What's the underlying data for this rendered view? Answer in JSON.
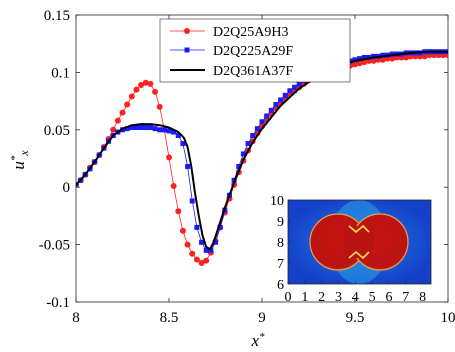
{
  "chart_data": {
    "type": "line",
    "xlabel": "x*",
    "ylabel": "u*x",
    "xlim": [
      8,
      10
    ],
    "ylim": [
      -0.1,
      0.15
    ],
    "xticks": [
      8,
      8.5,
      9,
      9.5,
      10
    ],
    "yticks": [
      -0.1,
      -0.05,
      0,
      0.05,
      0.1,
      0.15
    ],
    "xtick_labels": [
      "8",
      "8.5",
      "9",
      "9.5",
      "10"
    ],
    "ytick_labels": [
      "-0.1",
      "-0.05",
      "0",
      "0.05",
      "0.1",
      "0.15"
    ],
    "legend_position": "top-center",
    "series": [
      {
        "name": "D2Q25A9H3",
        "color": "#ff2020",
        "marker": "circle",
        "line_style": "solid-thin",
        "x": [
          8.0,
          8.025,
          8.05,
          8.075,
          8.1,
          8.125,
          8.15,
          8.175,
          8.2,
          8.225,
          8.25,
          8.275,
          8.3,
          8.325,
          8.35,
          8.375,
          8.4,
          8.425,
          8.45,
          8.475,
          8.5,
          8.525,
          8.55,
          8.575,
          8.6,
          8.625,
          8.65,
          8.675,
          8.7,
          8.725,
          8.75,
          8.775,
          8.8,
          8.825,
          8.85,
          8.875,
          8.9,
          8.925,
          8.95,
          8.975,
          9.0,
          9.025,
          9.05,
          9.075,
          9.1,
          9.125,
          9.15,
          9.175,
          9.2,
          9.225,
          9.25,
          9.275,
          9.3,
          9.325,
          9.35,
          9.375,
          9.4,
          9.425,
          9.45,
          9.475,
          9.5,
          9.525,
          9.55,
          9.575,
          9.6,
          9.625,
          9.65,
          9.675,
          9.7,
          9.725,
          9.75,
          9.775,
          9.8,
          9.825,
          9.85,
          9.875,
          9.9,
          9.925,
          9.95,
          9.975,
          10.0
        ],
        "y": [
          0.002,
          0.006,
          0.011,
          0.017,
          0.022,
          0.028,
          0.035,
          0.042,
          0.05,
          0.058,
          0.065,
          0.072,
          0.079,
          0.085,
          0.089,
          0.091,
          0.09,
          0.083,
          0.07,
          0.05,
          0.026,
          0.001,
          -0.021,
          -0.038,
          -0.05,
          -0.058,
          -0.063,
          -0.066,
          -0.064,
          -0.057,
          -0.047,
          -0.035,
          -0.022,
          -0.01,
          0.002,
          0.013,
          0.023,
          0.032,
          0.04,
          0.047,
          0.053,
          0.059,
          0.064,
          0.069,
          0.073,
          0.077,
          0.081,
          0.084,
          0.087,
          0.09,
          0.093,
          0.095,
          0.097,
          0.099,
          0.1,
          0.102,
          0.103,
          0.104,
          0.105,
          0.106,
          0.107,
          0.108,
          0.109,
          0.11,
          0.11,
          0.111,
          0.111,
          0.112,
          0.112,
          0.113,
          0.113,
          0.113,
          0.114,
          0.114,
          0.114,
          0.114,
          0.115,
          0.115,
          0.115,
          0.115,
          0.115
        ]
      },
      {
        "name": "D2Q225A29F",
        "color": "#1a1aff",
        "marker": "square",
        "line_style": "solid-thin",
        "x": [
          8.0,
          8.025,
          8.05,
          8.075,
          8.1,
          8.125,
          8.15,
          8.175,
          8.2,
          8.225,
          8.25,
          8.275,
          8.3,
          8.325,
          8.35,
          8.375,
          8.4,
          8.425,
          8.45,
          8.475,
          8.5,
          8.525,
          8.55,
          8.575,
          8.6,
          8.625,
          8.65,
          8.675,
          8.7,
          8.725,
          8.75,
          8.775,
          8.8,
          8.825,
          8.85,
          8.875,
          8.9,
          8.925,
          8.95,
          8.975,
          9.0,
          9.025,
          9.05,
          9.075,
          9.1,
          9.125,
          9.15,
          9.175,
          9.2,
          9.225,
          9.25,
          9.275,
          9.3,
          9.325,
          9.35,
          9.375,
          9.4,
          9.425,
          9.45,
          9.475,
          9.5,
          9.525,
          9.55,
          9.575,
          9.6,
          9.625,
          9.65,
          9.675,
          9.7,
          9.725,
          9.75,
          9.775,
          9.8,
          9.825,
          9.85,
          9.875,
          9.9,
          9.925,
          9.95,
          9.975,
          10.0
        ],
        "y": [
          0.002,
          0.006,
          0.011,
          0.016,
          0.022,
          0.028,
          0.034,
          0.04,
          0.045,
          0.048,
          0.05,
          0.051,
          0.052,
          0.052,
          0.052,
          0.052,
          0.052,
          0.051,
          0.05,
          0.05,
          0.049,
          0.048,
          0.045,
          0.038,
          0.018,
          -0.012,
          -0.035,
          -0.048,
          -0.055,
          -0.055,
          -0.048,
          -0.035,
          -0.02,
          -0.007,
          0.006,
          0.018,
          0.029,
          0.038,
          0.045,
          0.051,
          0.057,
          0.062,
          0.067,
          0.072,
          0.076,
          0.08,
          0.084,
          0.087,
          0.09,
          0.093,
          0.096,
          0.098,
          0.1,
          0.102,
          0.104,
          0.105,
          0.107,
          0.108,
          0.109,
          0.11,
          0.111,
          0.112,
          0.113,
          0.113,
          0.114,
          0.114,
          0.115,
          0.115,
          0.116,
          0.116,
          0.116,
          0.117,
          0.117,
          0.117,
          0.117,
          0.118,
          0.118,
          0.118,
          0.118,
          0.118,
          0.118
        ]
      },
      {
        "name": "D2Q361A37F",
        "color": "#000000",
        "marker": "none",
        "line_style": "solid-thick",
        "x": [
          8.0,
          8.05,
          8.1,
          8.15,
          8.2,
          8.25,
          8.3,
          8.35,
          8.4,
          8.45,
          8.5,
          8.55,
          8.58,
          8.6,
          8.62,
          8.64,
          8.66,
          8.68,
          8.7,
          8.72,
          8.74,
          8.76,
          8.78,
          8.8,
          8.85,
          8.9,
          8.95,
          9.0,
          9.05,
          9.1,
          9.2,
          9.3,
          9.4,
          9.5,
          9.6,
          9.7,
          9.8,
          9.9,
          10.0
        ],
        "y": [
          0.002,
          0.011,
          0.022,
          0.034,
          0.045,
          0.051,
          0.054,
          0.055,
          0.055,
          0.054,
          0.052,
          0.048,
          0.043,
          0.035,
          0.018,
          -0.005,
          -0.025,
          -0.042,
          -0.052,
          -0.054,
          -0.048,
          -0.038,
          -0.028,
          -0.018,
          0.004,
          0.024,
          0.039,
          0.051,
          0.061,
          0.071,
          0.086,
          0.097,
          0.105,
          0.11,
          0.113,
          0.115,
          0.117,
          0.118,
          0.118
        ]
      }
    ],
    "inset": {
      "description_type": "heatmap",
      "xticks": [
        0,
        1,
        2,
        3,
        4,
        5,
        6,
        7,
        8
      ],
      "yticks": [
        6,
        7,
        8,
        9,
        10
      ],
      "xtick_labels": [
        "0",
        "1",
        "2",
        "3",
        "4",
        "5",
        "6",
        "7",
        "8"
      ],
      "ytick_labels": [
        "6",
        "7",
        "8",
        "9",
        "10"
      ],
      "xlim": [
        0,
        8.5
      ],
      "ylim": [
        6,
        10
      ],
      "background_color": "#1540c8",
      "droplet_color": "#b81414"
    }
  }
}
